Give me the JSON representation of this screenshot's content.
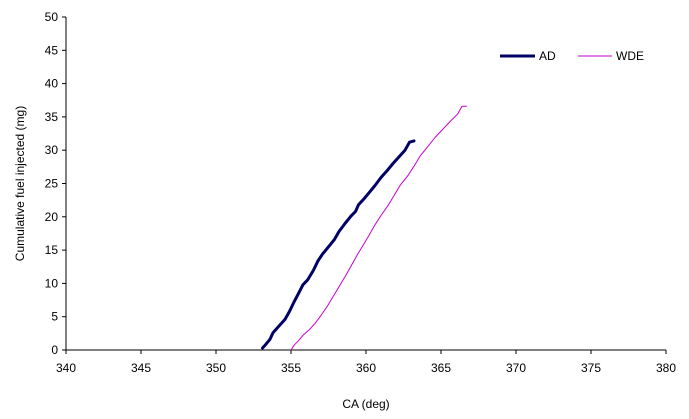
{
  "chart_data": {
    "type": "line",
    "xlabel": "CA (deg)",
    "ylabel": "Cumulative fuel injected (mg)",
    "xlim": [
      340,
      380
    ],
    "ylim": [
      0,
      50
    ],
    "x_ticks": [
      340,
      345,
      350,
      355,
      360,
      365,
      370,
      375,
      380
    ],
    "y_ticks": [
      0,
      5,
      10,
      15,
      20,
      25,
      30,
      35,
      40,
      45,
      50
    ],
    "grid": false,
    "legend_position": "top-right",
    "series": [
      {
        "name": "AD",
        "color": "#000066",
        "line_width": "thick",
        "points": [
          [
            353.1,
            0.3
          ],
          [
            353.3,
            0.8
          ],
          [
            353.6,
            1.6
          ],
          [
            353.8,
            2.6
          ],
          [
            354.2,
            3.6
          ],
          [
            354.6,
            4.6
          ],
          [
            354.9,
            5.8
          ],
          [
            355.2,
            7.2
          ],
          [
            355.5,
            8.5
          ],
          [
            355.8,
            9.8
          ],
          [
            356.1,
            10.5
          ],
          [
            356.5,
            12.0
          ],
          [
            356.8,
            13.4
          ],
          [
            357.1,
            14.4
          ],
          [
            357.5,
            15.5
          ],
          [
            357.9,
            16.6
          ],
          [
            358.2,
            17.8
          ],
          [
            358.6,
            19.0
          ],
          [
            359.0,
            20.1
          ],
          [
            359.3,
            20.8
          ],
          [
            359.5,
            21.8
          ],
          [
            359.9,
            22.8
          ],
          [
            360.2,
            23.6
          ],
          [
            360.6,
            24.7
          ],
          [
            361.0,
            25.9
          ],
          [
            361.4,
            26.9
          ],
          [
            361.8,
            28.0
          ],
          [
            362.2,
            29.0
          ],
          [
            362.6,
            30.0
          ],
          [
            362.9,
            31.2
          ],
          [
            363.2,
            31.4
          ]
        ]
      },
      {
        "name": "WDE",
        "color": "#cc00cc",
        "line_width": "thin",
        "points": [
          [
            355.0,
            0.0
          ],
          [
            355.2,
            0.7
          ],
          [
            355.5,
            1.4
          ],
          [
            355.8,
            2.2
          ],
          [
            356.2,
            3.0
          ],
          [
            356.6,
            4.0
          ],
          [
            357.0,
            5.2
          ],
          [
            357.4,
            6.5
          ],
          [
            357.8,
            8.0
          ],
          [
            358.2,
            9.5
          ],
          [
            358.6,
            11.0
          ],
          [
            359.0,
            12.6
          ],
          [
            359.4,
            14.2
          ],
          [
            359.8,
            15.7
          ],
          [
            360.2,
            17.2
          ],
          [
            360.6,
            18.8
          ],
          [
            361.0,
            20.2
          ],
          [
            361.5,
            21.8
          ],
          [
            361.9,
            23.3
          ],
          [
            362.3,
            24.8
          ],
          [
            362.8,
            26.2
          ],
          [
            363.2,
            27.6
          ],
          [
            363.6,
            29.1
          ],
          [
            364.1,
            30.5
          ],
          [
            364.6,
            31.9
          ],
          [
            365.1,
            33.1
          ],
          [
            365.6,
            34.3
          ],
          [
            366.1,
            35.4
          ],
          [
            366.4,
            36.6
          ],
          [
            366.7,
            36.6
          ]
        ]
      }
    ]
  }
}
